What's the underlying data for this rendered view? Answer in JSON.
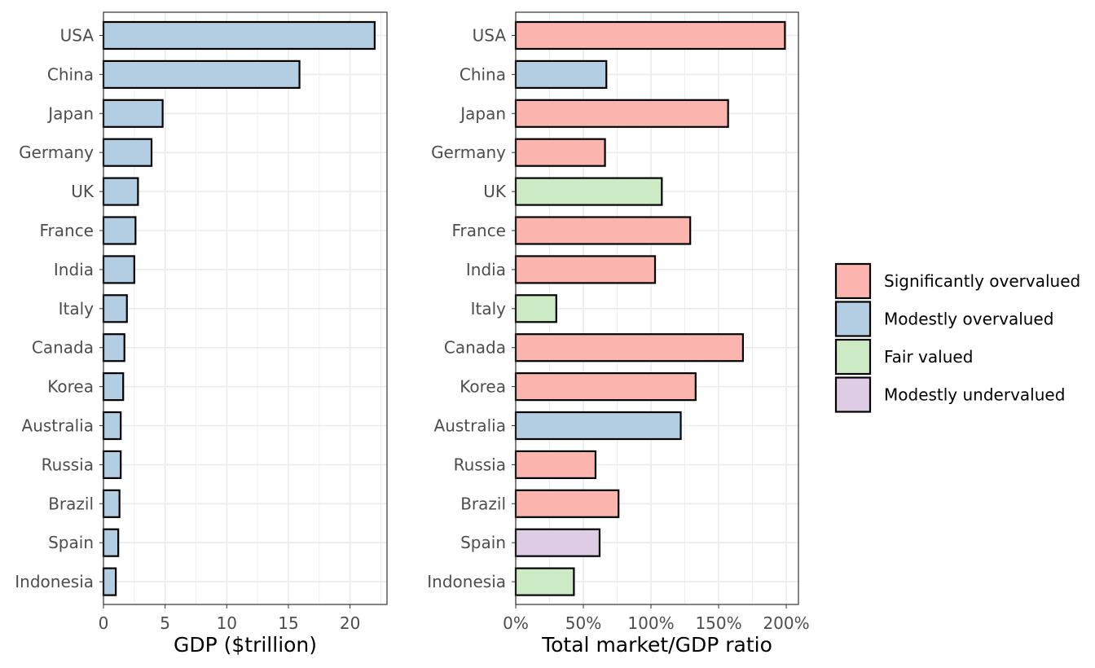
{
  "colors": {
    "Significantly overvalued": "#FBB4AE",
    "Modestly overvalued": "#B3CDE3",
    "Fair valued": "#CCEBC5",
    "Modestly undervalued": "#DECBE4",
    "bar_stroke": "#000000",
    "grid": "#EBEBEB",
    "panel_border": "#333333"
  },
  "legend": {
    "entries": [
      "Significantly overvalued",
      "Modestly overvalued",
      "Fair valued",
      "Modestly undervalued"
    ]
  },
  "chart_data": [
    {
      "type": "bar",
      "orientation": "horizontal",
      "xlabel": "GDP ($trillion)",
      "ylabel": "",
      "xlim": [
        0,
        23
      ],
      "xticks": [
        0,
        5,
        10,
        15,
        20
      ],
      "tick_labels": [
        "0",
        "5",
        "10",
        "15",
        "20"
      ],
      "grid": true,
      "categories": [
        "USA",
        "China",
        "Japan",
        "Germany",
        "UK",
        "France",
        "India",
        "Italy",
        "Canada",
        "Korea",
        "Australia",
        "Russia",
        "Brazil",
        "Spain",
        "Indonesia"
      ],
      "values": [
        22.0,
        15.9,
        4.8,
        3.9,
        2.8,
        2.6,
        2.5,
        1.9,
        1.7,
        1.6,
        1.4,
        1.4,
        1.3,
        1.2,
        1.0
      ],
      "groups": [
        "Modestly overvalued",
        "Modestly overvalued",
        "Modestly overvalued",
        "Modestly overvalued",
        "Modestly overvalued",
        "Modestly overvalued",
        "Modestly overvalued",
        "Modestly overvalued",
        "Modestly overvalued",
        "Modestly overvalued",
        "Modestly overvalued",
        "Modestly overvalued",
        "Modestly overvalued",
        "Modestly overvalued",
        "Modestly overvalued"
      ]
    },
    {
      "type": "bar",
      "orientation": "horizontal",
      "xlabel": "Total market/GDP ratio",
      "ylabel": "",
      "xlim": [
        0,
        209
      ],
      "xticks": [
        0,
        50,
        100,
        150,
        200
      ],
      "tick_labels": [
        "0%",
        "50%",
        "100%",
        "150%",
        "200%"
      ],
      "grid": true,
      "legend_position": "right",
      "categories": [
        "USA",
        "China",
        "Japan",
        "Germany",
        "UK",
        "France",
        "India",
        "Italy",
        "Canada",
        "Korea",
        "Australia",
        "Russia",
        "Brazil",
        "Spain",
        "Indonesia"
      ],
      "values": [
        199,
        67,
        157,
        66,
        108,
        129,
        103,
        30,
        168,
        133,
        122,
        59,
        76,
        62,
        43
      ],
      "groups": [
        "Significantly overvalued",
        "Modestly overvalued",
        "Significantly overvalued",
        "Significantly overvalued",
        "Fair valued",
        "Significantly overvalued",
        "Significantly overvalued",
        "Fair valued",
        "Significantly overvalued",
        "Significantly overvalued",
        "Modestly overvalued",
        "Significantly overvalued",
        "Significantly overvalued",
        "Modestly undervalued",
        "Fair valued"
      ]
    }
  ]
}
